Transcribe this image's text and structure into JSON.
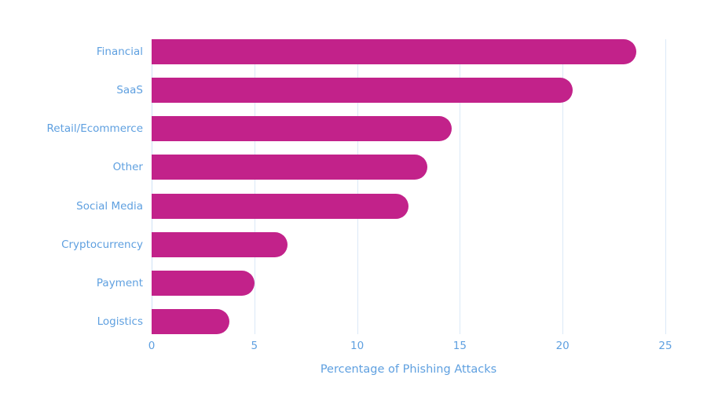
{
  "colors": {
    "bar": "#c2228a",
    "text": "#5fa0e0",
    "grid": "#dbe9f7",
    "background": "#ffffff"
  },
  "chart_data": {
    "type": "bar",
    "orientation": "horizontal",
    "title": "",
    "xlabel": "Percentage of Phishing Attacks",
    "ylabel": "",
    "xlim": [
      0,
      25
    ],
    "x_ticks": [
      0,
      5,
      10,
      15,
      20,
      25
    ],
    "grid": true,
    "legend": null,
    "categories": [
      "Financial",
      "SaaS",
      "Retail/Ecommerce",
      "Other",
      "Social Media",
      "Cryptocurrency",
      "Payment",
      "Logistics"
    ],
    "values": [
      23.6,
      20.5,
      14.6,
      13.4,
      12.5,
      6.6,
      5.0,
      3.8
    ]
  }
}
